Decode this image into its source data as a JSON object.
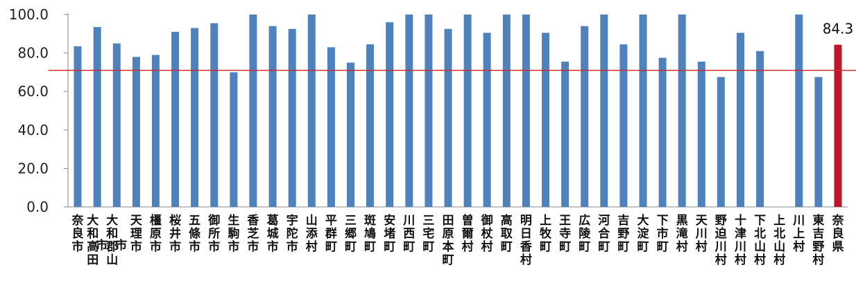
{
  "chart_data": {
    "type": "bar",
    "categories": [
      "奈良市",
      "大和高田市",
      "大和郡山市",
      "天理市",
      "橿原市",
      "桜井市",
      "五條市",
      "御所市",
      "生駒市",
      "香芝市",
      "葛城市",
      "宇陀市",
      "山添村",
      "平群町",
      "三郷町",
      "斑鳩町",
      "安堵町",
      "川西町",
      "三宅町",
      "田原本町",
      "曽爾村",
      "御杖村",
      "高取町",
      "明日香村",
      "上牧町",
      "王寺町",
      "広陵町",
      "河合町",
      "吉野町",
      "大淀町",
      "下市町",
      "黒滝村",
      "天川村",
      "野迫川村",
      "十津川村",
      "下北山村",
      "上北山村",
      "川上村",
      "東吉野村",
      "奈良県"
    ],
    "values": [
      83.5,
      93.5,
      85,
      78,
      79,
      91,
      93,
      95.5,
      70,
      100,
      94,
      92.5,
      100,
      83,
      75,
      84.5,
      96,
      100,
      100,
      92.5,
      100,
      90.5,
      100,
      100,
      90.5,
      75.5,
      94,
      100,
      84.5,
      100,
      77.5,
      100,
      75.5,
      67.5,
      90.5,
      81,
      0,
      100,
      67.5,
      84.3
    ],
    "highlight_index": 39,
    "highlight_label": "84.3",
    "reference_line": 71,
    "ylim": [
      0,
      100
    ],
    "yticks": [
      "0.0",
      "20.0",
      "40.0",
      "60.0",
      "80.0",
      "100.0"
    ],
    "grid": false,
    "colors": {
      "bar": "#4f81bd",
      "highlight": "#c0142a",
      "reference_line": "#d02a2a"
    }
  }
}
